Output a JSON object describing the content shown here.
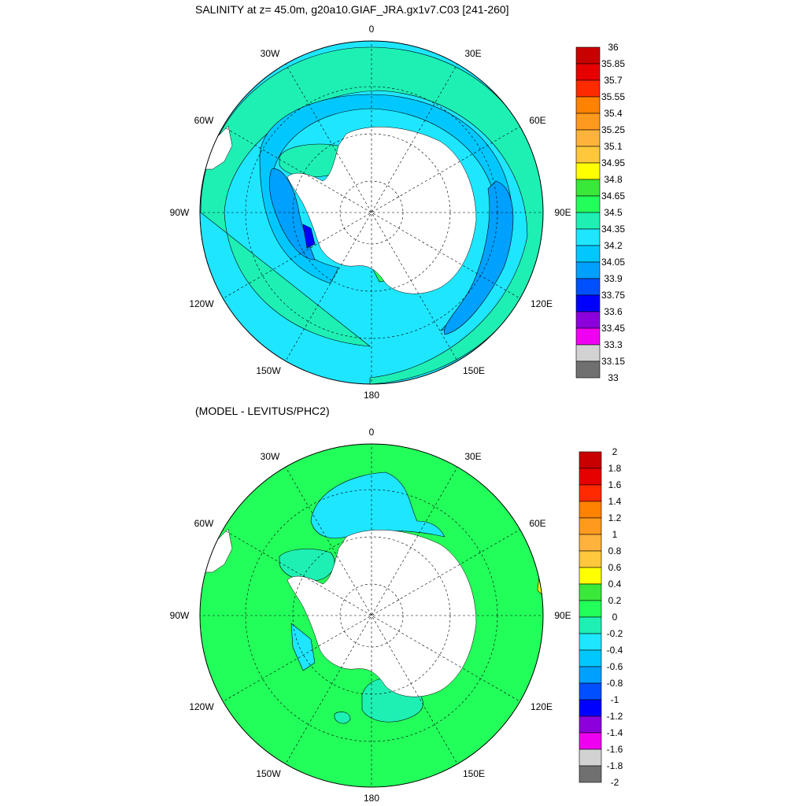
{
  "panels": [
    {
      "title": "SALINITY at z=  45.0m, g20a10.GIAF_JRA.gx1v7.C03 [241-260]",
      "lon_labels": [
        "0",
        "30E",
        "60E",
        "90E",
        "120E",
        "150E",
        "180",
        "150W",
        "120W",
        "90W",
        "60W",
        "30W"
      ],
      "colorbar": {
        "labels": [
          "36",
          "35.85",
          "35.7",
          "35.55",
          "35.4",
          "35.25",
          "35.1",
          "34.95",
          "34.8",
          "34.65",
          "34.5",
          "34.35",
          "34.2",
          "34.05",
          "33.9",
          "33.75",
          "33.6",
          "33.45",
          "33.3",
          "33.15",
          "33"
        ],
        "colors": [
          "#c80000",
          "#e60000",
          "#ff2a00",
          "#ff8200",
          "#ff9a1e",
          "#ffb33c",
          "#ffc83c",
          "#ffff00",
          "#3ae83a",
          "#23ff5a",
          "#1ef0b4",
          "#1ee6ff",
          "#00c8ff",
          "#00a0ff",
          "#0050ff",
          "#0000ff",
          "#8c00dc",
          "#f000f0",
          "#d2d2d2",
          "#707070"
        ]
      }
    },
    {
      "title": "(MODEL - LEVITUS/PHC2)",
      "lon_labels": [
        "0",
        "30E",
        "60E",
        "90E",
        "120E",
        "150E",
        "180",
        "150W",
        "120W",
        "90W",
        "60W",
        "30W"
      ],
      "colorbar": {
        "labels": [
          "2",
          "1.8",
          "1.6",
          "1.4",
          "1.2",
          "1",
          "0.8",
          "0.6",
          "0.4",
          "0.2",
          "0",
          "-0.2",
          "-0.4",
          "-0.6",
          "-0.8",
          "-1",
          "-1.2",
          "-1.4",
          "-1.6",
          "-1.8",
          "-2"
        ],
        "colors": [
          "#c80000",
          "#e60000",
          "#ff2a00",
          "#ff8200",
          "#ff9a1e",
          "#ffb33c",
          "#ffc83c",
          "#ffff00",
          "#3ae83a",
          "#23ff5a",
          "#1ef0b4",
          "#1ee6ff",
          "#00c8ff",
          "#00a0ff",
          "#0050ff",
          "#0000ff",
          "#8c00dc",
          "#f000f0",
          "#d2d2d2",
          "#707070"
        ]
      }
    }
  ],
  "colors": {
    "ocean_fresh": "#1ee6ff",
    "ocean_mid": "#00c8ff",
    "ocean_low": "#00a0ff",
    "ocean_lowest": "#0050ff",
    "ocean_salty": "#1ef0b4",
    "diff_pos": "#23ff5a",
    "diff_neg": "#1ee6ff",
    "diff_neg2": "#1ef0b4",
    "land": "#ffffff"
  }
}
